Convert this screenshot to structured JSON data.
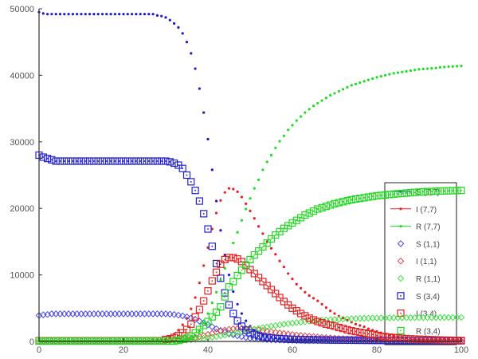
{
  "chart_data": {
    "type": "scatter",
    "title": "",
    "xlabel": "",
    "ylabel": "",
    "xlim": [
      0,
      100
    ],
    "ylim": [
      0,
      50000
    ],
    "grid": false,
    "legend_position": "bottom-right",
    "x_ticks": [
      "0",
      "20",
      "40",
      "60",
      "80",
      "100"
    ],
    "y_ticks": [
      "0",
      "10000",
      "20000",
      "30000",
      "40000",
      "50000"
    ],
    "x": [
      0,
      1,
      2,
      3,
      4,
      5,
      6,
      7,
      8,
      9,
      10,
      11,
      12,
      13,
      14,
      15,
      16,
      17,
      18,
      19,
      20,
      21,
      22,
      23,
      24,
      25,
      26,
      27,
      28,
      29,
      30,
      31,
      32,
      33,
      34,
      35,
      36,
      37,
      38,
      39,
      40,
      41,
      42,
      43,
      44,
      45,
      46,
      47,
      48,
      49,
      50,
      51,
      52,
      53,
      54,
      55,
      56,
      57,
      58,
      59,
      60,
      61,
      62,
      63,
      64,
      65,
      66,
      67,
      68,
      69,
      70,
      71,
      72,
      73,
      74,
      75,
      76,
      77,
      78,
      79,
      80,
      81,
      82,
      83,
      84,
      85,
      86,
      87,
      88,
      89,
      90,
      91,
      92,
      93,
      94,
      95,
      96,
      97,
      98,
      99,
      100
    ],
    "series": [
      {
        "name": "S (7,7)",
        "color": "#1a1acc",
        "marker": "dot-line",
        "values": [
          49500,
          49300,
          49200,
          49200,
          49200,
          49200,
          49200,
          49200,
          49200,
          49200,
          49200,
          49200,
          49200,
          49200,
          49200,
          49200,
          49200,
          49200,
          49200,
          49200,
          49200,
          49200,
          49200,
          49200,
          49200,
          49200,
          49200,
          49200,
          49000,
          48900,
          48700,
          48300,
          47800,
          47200,
          46300,
          45000,
          43300,
          41000,
          38000,
          34400,
          30400,
          25800,
          21100,
          16700,
          13000,
          10000,
          7500,
          5600,
          4200,
          3100,
          2300,
          1700,
          1300,
          1000,
          800,
          650,
          550,
          450,
          400,
          350,
          300,
          280,
          260,
          240,
          220,
          200,
          180,
          160,
          150,
          140,
          130,
          120,
          115,
          110,
          105,
          100,
          100,
          95,
          90,
          90,
          85,
          85,
          80,
          80,
          75,
          75,
          70,
          70,
          70,
          65,
          65,
          65,
          60,
          60,
          60,
          55,
          55,
          55,
          50,
          50,
          50
        ]
      },
      {
        "name": "I (7,7)",
        "color": "#ee1c1c",
        "marker": "dot-line",
        "values": [
          50,
          50,
          50,
          50,
          50,
          50,
          50,
          50,
          50,
          50,
          50,
          50,
          50,
          50,
          50,
          50,
          50,
          50,
          50,
          50,
          50,
          50,
          50,
          50,
          50,
          50,
          50,
          150,
          200,
          300,
          450,
          700,
          1100,
          1700,
          2500,
          3500,
          4900,
          6600,
          8800,
          11400,
          14100,
          16900,
          19300,
          21200,
          22400,
          23000,
          22900,
          22500,
          21700,
          20700,
          19600,
          18500,
          17300,
          16200,
          15000,
          14000,
          13100,
          12100,
          11200,
          10200,
          9400,
          8600,
          8000,
          7400,
          6900,
          6500,
          6100,
          5600,
          5100,
          4600,
          4200,
          3800,
          3500,
          3200,
          2900,
          2600,
          2400,
          2200,
          1900,
          1700,
          1500,
          1300,
          1150,
          1000,
          850,
          700,
          620,
          550,
          480,
          420,
          370,
          330,
          290,
          260,
          230,
          210,
          190,
          175,
          160,
          150,
          140
        ]
      },
      {
        "name": "R (7,7)",
        "color": "#1edc1e",
        "marker": "dot-line",
        "values": [
          50,
          50,
          50,
          50,
          50,
          50,
          50,
          50,
          50,
          50,
          50,
          50,
          50,
          50,
          50,
          50,
          50,
          50,
          50,
          50,
          50,
          50,
          50,
          50,
          50,
          50,
          50,
          50,
          50,
          50,
          50,
          50,
          50,
          50,
          150,
          300,
          500,
          900,
          1600,
          2800,
          4200,
          5800,
          7400,
          9200,
          11000,
          12700,
          14800,
          16400,
          18200,
          19900,
          21500,
          23000,
          24300,
          25800,
          27000,
          28000,
          29100,
          30100,
          30900,
          31800,
          32500,
          33200,
          33800,
          34400,
          34900,
          35400,
          35800,
          36200,
          36600,
          37000,
          37300,
          37600,
          37900,
          38200,
          38500,
          38700,
          38900,
          39100,
          39300,
          39500,
          39700,
          39850,
          40000,
          40150,
          40300,
          40400,
          40500,
          40600,
          40700,
          40800,
          40900,
          40950,
          41000,
          41050,
          41100,
          41200,
          41250,
          41300,
          41330,
          41370,
          41400
        ]
      },
      {
        "name": "S (1,1)",
        "color": "#4a4ae6",
        "marker": "diamond",
        "values": [
          3900,
          4000,
          4050,
          4150,
          4150,
          4150,
          4150,
          4150,
          4150,
          4150,
          4150,
          4150,
          4150,
          4150,
          4150,
          4150,
          4150,
          4150,
          4150,
          4150,
          4150,
          4150,
          4150,
          4150,
          4150,
          4150,
          4150,
          4150,
          4150,
          4150,
          4150,
          4100,
          4050,
          3950,
          3850,
          3700,
          3500,
          3300,
          3050,
          2800,
          2500,
          2200,
          1900,
          1650,
          1400,
          1200,
          1000,
          850,
          720,
          600,
          500,
          430,
          370,
          320,
          280,
          250,
          220,
          200,
          180,
          160,
          150,
          140,
          135,
          130,
          125,
          120,
          115,
          110,
          105,
          100,
          95,
          92,
          90,
          88,
          85,
          82,
          80,
          78,
          75,
          72,
          70,
          68,
          66,
          64,
          62,
          60,
          58,
          57,
          56,
          55,
          54,
          53,
          52,
          51,
          50,
          50,
          50,
          50,
          50,
          50,
          50
        ]
      },
      {
        "name": "I (1,1)",
        "color": "#e04848",
        "marker": "diamond",
        "values": [
          50,
          50,
          50,
          50,
          50,
          50,
          50,
          50,
          50,
          50,
          50,
          50,
          50,
          50,
          50,
          50,
          50,
          50,
          50,
          50,
          50,
          50,
          50,
          50,
          50,
          50,
          50,
          50,
          50,
          50,
          100,
          130,
          170,
          220,
          280,
          350,
          450,
          580,
          720,
          880,
          1050,
          1220,
          1400,
          1560,
          1700,
          1820,
          1900,
          1950,
          1950,
          1920,
          1870,
          1800,
          1720,
          1640,
          1550,
          1460,
          1370,
          1280,
          1200,
          1120,
          1040,
          970,
          900,
          840,
          780,
          720,
          670,
          620,
          580,
          540,
          500,
          460,
          430,
          400,
          370,
          340,
          320,
          300,
          280,
          260,
          240,
          225,
          210,
          195,
          180,
          170,
          160,
          150,
          140,
          130,
          120,
          115,
          110,
          105,
          100,
          95,
          90,
          85,
          80,
          75,
          70
        ]
      },
      {
        "name": "R (1,1)",
        "color": "#48e048",
        "marker": "diamond",
        "values": [
          30,
          30,
          30,
          30,
          30,
          30,
          30,
          30,
          30,
          30,
          30,
          30,
          30,
          30,
          30,
          30,
          30,
          30,
          30,
          30,
          30,
          30,
          30,
          30,
          30,
          30,
          30,
          30,
          30,
          30,
          60,
          80,
          100,
          130,
          160,
          200,
          250,
          310,
          380,
          460,
          550,
          640,
          740,
          850,
          960,
          1080,
          1200,
          1320,
          1450,
          1580,
          1700,
          1830,
          1950,
          2070,
          2180,
          2290,
          2390,
          2490,
          2580,
          2670,
          2750,
          2830,
          2900,
          2970,
          3030,
          3090,
          3140,
          3190,
          3230,
          3270,
          3310,
          3340,
          3370,
          3400,
          3420,
          3440,
          3460,
          3480,
          3500,
          3510,
          3520,
          3530,
          3540,
          3550,
          3555,
          3560,
          3565,
          3570,
          3575,
          3580,
          3585,
          3590,
          3590,
          3595,
          3595,
          3600,
          3600,
          3600,
          3605,
          3605,
          3610
        ]
      },
      {
        "name": "S (3,4)",
        "color": "#2222cc",
        "marker": "square",
        "values": [
          28000,
          27700,
          27500,
          27300,
          27100,
          27100,
          27100,
          27100,
          27100,
          27100,
          27100,
          27100,
          27100,
          27100,
          27100,
          27100,
          27100,
          27100,
          27100,
          27100,
          27100,
          27100,
          27100,
          27100,
          27100,
          27100,
          27100,
          27100,
          27100,
          27100,
          27100,
          27000,
          26800,
          26500,
          26000,
          25000,
          24000,
          22700,
          21100,
          19200,
          16900,
          14300,
          11700,
          9500,
          7300,
          5500,
          4200,
          3100,
          2300,
          1700,
          1300,
          1050,
          850,
          700,
          600,
          520,
          460,
          420,
          380,
          350,
          320,
          300,
          290,
          280,
          270,
          260,
          250,
          240,
          230,
          220,
          210,
          205,
          200,
          195,
          190,
          185,
          180,
          175,
          170,
          165,
          160,
          155,
          150,
          148,
          145,
          142,
          140,
          138,
          135,
          132,
          130,
          128,
          125,
          122,
          120,
          118,
          115,
          112,
          110,
          108,
          105
        ]
      },
      {
        "name": "I (3,4)",
        "color": "#e02222",
        "marker": "square",
        "values": [
          100,
          100,
          100,
          100,
          100,
          100,
          100,
          100,
          100,
          100,
          100,
          100,
          100,
          100,
          100,
          100,
          100,
          100,
          100,
          100,
          100,
          100,
          100,
          100,
          100,
          100,
          100,
          100,
          100,
          100,
          300,
          400,
          600,
          900,
          1300,
          1800,
          2600,
          3700,
          4800,
          6100,
          7600,
          9100,
          10400,
          11600,
          12300,
          12600,
          12600,
          12400,
          12000,
          11400,
          10800,
          10200,
          9600,
          9000,
          8400,
          7800,
          7200,
          6600,
          6000,
          5500,
          5000,
          4600,
          4200,
          3850,
          3500,
          3250,
          3000,
          2800,
          2600,
          2450,
          2300,
          2100,
          1950,
          1750,
          1600,
          1480,
          1360,
          1250,
          1150,
          1050,
          900,
          750,
          700,
          640,
          580,
          530,
          480,
          430,
          390,
          360,
          330,
          300,
          280,
          260,
          240,
          220,
          200,
          190,
          175,
          160,
          150
        ]
      },
      {
        "name": "R (3,4)",
        "color": "#22d822",
        "marker": "square",
        "values": [
          50,
          50,
          50,
          50,
          50,
          50,
          50,
          50,
          50,
          50,
          50,
          50,
          50,
          50,
          50,
          50,
          50,
          50,
          50,
          50,
          50,
          50,
          50,
          50,
          50,
          50,
          50,
          50,
          50,
          50,
          50,
          50,
          50,
          150,
          300,
          500,
          800,
          1300,
          1800,
          2400,
          3000,
          3700,
          4400,
          5200,
          6700,
          8200,
          9000,
          9900,
          10700,
          11500,
          12300,
          13000,
          13600,
          14200,
          14800,
          15400,
          16000,
          16500,
          17000,
          17400,
          17800,
          18200,
          18600,
          19000,
          19300,
          19600,
          19900,
          20100,
          20300,
          20500,
          20700,
          20850,
          21000,
          21150,
          21300,
          21400,
          21500,
          21600,
          21700,
          21800,
          21900,
          21960,
          22020,
          22080,
          22140,
          22200,
          22250,
          22300,
          22350,
          22400,
          22450,
          22490,
          22520,
          22550,
          22580,
          22600,
          22620,
          22640,
          22660,
          22680,
          22700
        ]
      }
    ]
  }
}
